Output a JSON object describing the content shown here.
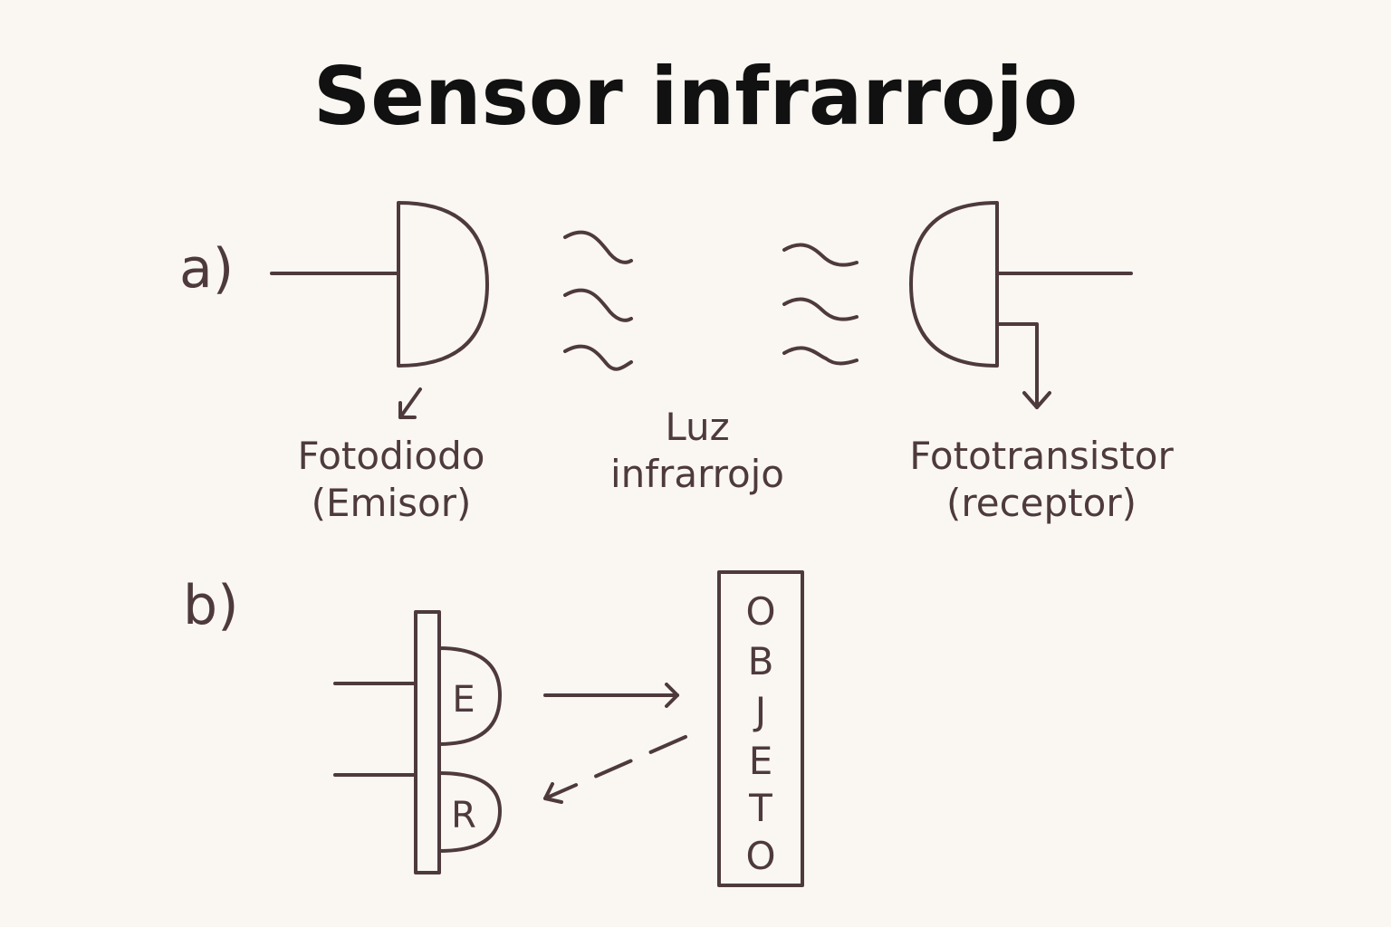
{
  "title": "Sensor infrarrojo",
  "section_a": {
    "label": "a)",
    "emitter": {
      "line1": "Fotodiodo",
      "line2": "(Emisor)"
    },
    "light": {
      "line1": "Luz",
      "line2": "infrarrojo"
    },
    "receiver": {
      "line1": "Fototransistor",
      "line2": "(receptor)"
    }
  },
  "section_b": {
    "label": "b)",
    "emitter_letter": "E",
    "receiver_letter": "R",
    "object_letters": [
      "O",
      "B",
      "J",
      "E",
      "T",
      "O"
    ]
  },
  "colors": {
    "stroke": "#4e3a3c",
    "title": "#111111",
    "background": "#faf7f3"
  }
}
